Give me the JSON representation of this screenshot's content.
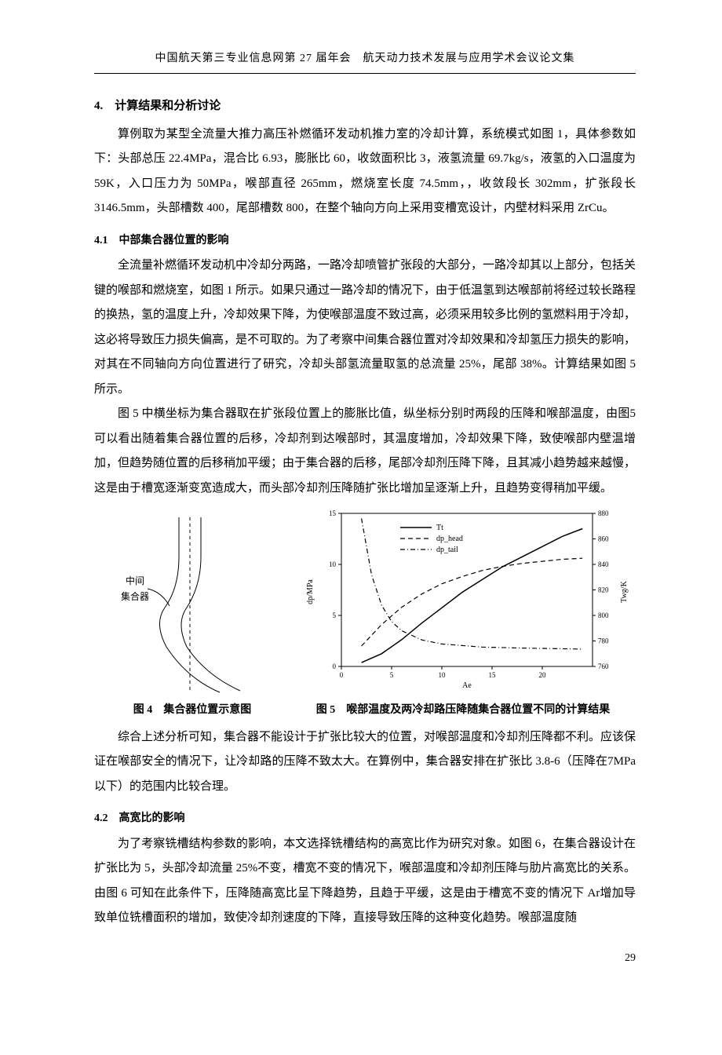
{
  "header": "中国航天第三专业信息网第 27 届年会　航天动力技术发展与应用学术会议论文集",
  "page_number": "29",
  "sec4_title": "4.　计算结果和分析讨论",
  "sec4_p1": "算例取为某型全流量大推力高压补燃循环发动机推力室的冷却计算，系统模式如图 1，具体参数如下：头部总压 22.4MPa，混合比 6.93，膨胀比 60，收敛面积比 3，液氢流量 69.7kg/s，液氢的入口温度为 59K，入口压力为 50MPa，喉部直径 265mm，燃烧室长度 74.5mm，，收敛段长 302mm，扩张段长 3146.5mm，头部槽数 400，尾部槽数 800，在整个轴向方向上采用变槽宽设计，内壁材料采用 ZrCu。",
  "sec41_title": "4.1　中部集合器位置的影响",
  "sec41_p1": "全流量补燃循环发动机中冷却分两路，一路冷却喷管扩张段的大部分，一路冷却其以上部分，包括关键的喉部和燃烧室，如图 1 所示。如果只通过一路冷却的情况下，由于低温氢到达喉部前将经过较长路程的换热，氢的温度上升，冷却效果下降，为使喉部温度不致过高，必须采用较多比例的氢燃料用于冷却，这必将导致压力损失偏高，是不可取的。为了考察中间集合器位置对冷却效果和冷却氢压力损失的影响，对其在不同轴向方向位置进行了研究，冷却头部氢流量取氢的总流量 25%，尾部 38%。计算结果如图 5 所示。",
  "sec41_p2": "图 5 中横坐标为集合器取在扩张段位置上的膨胀比值，纵坐标分别时两段的压降和喉部温度，由图5 可以看出随着集合器位置的后移，冷却剂到达喉部时，其温度增加，冷却效果下降，致使喉部内壁温增加，但趋势随位置的后移稍加平缓；由于集合器的后移，尾部冷却剂压降下降，且其减小趋势越来越慢，这是由于槽宽逐渐变宽造成大，而头部冷却剂压降随扩张比增加呈逐渐上升，且趋势变得稍加平缓。",
  "sec41_p3": "综合上述分析可知，集合器不能设计于扩张比较大的位置，对喉部温度和冷却剂压降都不利。应该保证在喉部安全的情况下，让冷却路的压降不致太大。在算例中，集合器安排在扩张比 3.8-6（压降在7MPa 以下）的范围内比较合理。",
  "fig4_caption": "图 4　集合器位置示意图",
  "fig4_labels": {
    "mid": "中间",
    "collector": "集合器"
  },
  "fig5_caption": "图 5　喉部温度及两冷却路压降随集合器位置不同的计算结果",
  "chart": {
    "type": "line-dual-y",
    "x_label": "Ae",
    "x_ticks": [
      0,
      5,
      10,
      15,
      20
    ],
    "x_range": [
      0,
      25
    ],
    "y_left_label": "dp/MPa",
    "y_left_ticks": [
      0,
      5,
      10,
      15
    ],
    "y_left_range": [
      0,
      15
    ],
    "y_right_label": "Twg/K",
    "y_right_ticks": [
      760,
      780,
      800,
      820,
      840,
      860,
      880
    ],
    "y_right_range": [
      760,
      880
    ],
    "legend": [
      {
        "name": "Tt",
        "style": "solid",
        "axis": "right"
      },
      {
        "name": "dp_head",
        "style": "dash",
        "axis": "left"
      },
      {
        "name": "dp_tail",
        "style": "dashdot",
        "axis": "left"
      }
    ],
    "series": {
      "Tt": {
        "x": [
          2,
          4,
          6,
          8,
          10,
          12,
          14,
          16,
          18,
          20,
          22,
          24
        ],
        "y": [
          763,
          770,
          781,
          794,
          806,
          818,
          828,
          838,
          846,
          854,
          862,
          868
        ]
      },
      "dp_head": {
        "x": [
          2,
          4,
          6,
          8,
          10,
          12,
          14,
          16,
          18,
          20,
          22,
          24
        ],
        "y": [
          2.0,
          4.1,
          5.8,
          7.1,
          8.1,
          8.8,
          9.4,
          9.8,
          10.1,
          10.3,
          10.5,
          10.6
        ]
      },
      "dp_tail": {
        "x": [
          2,
          3,
          4,
          5,
          6,
          8,
          10,
          14,
          18,
          24
        ],
        "y": [
          14.5,
          9.0,
          6.0,
          4.4,
          3.5,
          2.6,
          2.2,
          1.9,
          1.8,
          1.7
        ]
      }
    },
    "colors": {
      "axis": "#000000",
      "series": "#000000",
      "background": "#ffffff"
    },
    "line_widths": {
      "Tt": 1.5,
      "dp_head": 1.2,
      "dp_tail": 1.2
    },
    "font_size_ticks": 9,
    "font_size_labels": 10
  },
  "sec42_title": "4.2　高宽比的影响",
  "sec42_p1": "为了考察铣槽结构参数的影响，本文选择铣槽结构的高宽比作为研究对象。如图 6，在集合器设计在扩张比为 5，头部冷却流量 25%不变，槽宽不变的情况下，喉部温度和冷却剂压降与肋片高宽比的关系。由图 6 可知在此条件下，压降随高宽比呈下降趋势，且趋于平缓，这是由于槽宽不变的情况下 Ar增加导致单位铣槽面积的增加，致使冷却剂速度的下降，直接导致压降的这种变化趋势。喉部温度随"
}
